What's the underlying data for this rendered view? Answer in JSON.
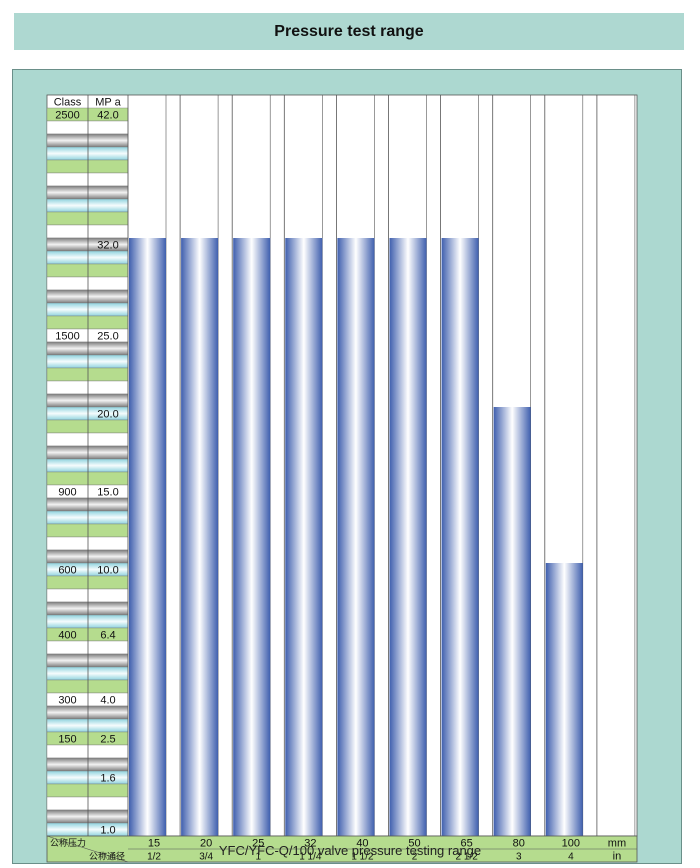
{
  "page": {
    "title": "Pressure test range",
    "caption": "YFC/YFC-Q/100 valve pressure testing range"
  },
  "colors": {
    "panel": "#acd8d0",
    "bar_edge": "#3f5fae",
    "bar_mid": "#ffffff",
    "row_green": "#b5dc8e",
    "row_cyan": "#b9e4ea",
    "row_gray": "#9c9c9c"
  },
  "chart_data": {
    "type": "bar",
    "header": {
      "class": "Class",
      "unit": "MP a"
    },
    "y_range_mpa": [
      1.0,
      42.0
    ],
    "rows": [
      {
        "mpa": "42.0",
        "class": "2500",
        "style": "green"
      },
      {
        "mpa": "",
        "class": "",
        "style": "white"
      },
      {
        "mpa": "",
        "class": "",
        "style": "gray"
      },
      {
        "mpa": "",
        "class": "",
        "style": "cyan"
      },
      {
        "mpa": "",
        "class": "",
        "style": "green"
      },
      {
        "mpa": "",
        "class": "",
        "style": "white"
      },
      {
        "mpa": "",
        "class": "",
        "style": "gray"
      },
      {
        "mpa": "",
        "class": "",
        "style": "cyan"
      },
      {
        "mpa": "",
        "class": "",
        "style": "green"
      },
      {
        "mpa": "",
        "class": "",
        "style": "white"
      },
      {
        "mpa": "32.0",
        "class": "",
        "style": "gray"
      },
      {
        "mpa": "",
        "class": "",
        "style": "cyan"
      },
      {
        "mpa": "",
        "class": "",
        "style": "green"
      },
      {
        "mpa": "",
        "class": "",
        "style": "white"
      },
      {
        "mpa": "",
        "class": "",
        "style": "gray"
      },
      {
        "mpa": "",
        "class": "",
        "style": "cyan"
      },
      {
        "mpa": "",
        "class": "",
        "style": "green"
      },
      {
        "mpa": "25.0",
        "class": "1500",
        "style": "white"
      },
      {
        "mpa": "",
        "class": "",
        "style": "gray"
      },
      {
        "mpa": "",
        "class": "",
        "style": "cyan"
      },
      {
        "mpa": "",
        "class": "",
        "style": "green"
      },
      {
        "mpa": "",
        "class": "",
        "style": "white"
      },
      {
        "mpa": "",
        "class": "",
        "style": "gray"
      },
      {
        "mpa": "20.0",
        "class": "",
        "style": "cyan"
      },
      {
        "mpa": "",
        "class": "",
        "style": "green"
      },
      {
        "mpa": "",
        "class": "",
        "style": "white"
      },
      {
        "mpa": "",
        "class": "",
        "style": "gray"
      },
      {
        "mpa": "",
        "class": "",
        "style": "cyan"
      },
      {
        "mpa": "",
        "class": "",
        "style": "green"
      },
      {
        "mpa": "15.0",
        "class": "900",
        "style": "white"
      },
      {
        "mpa": "",
        "class": "",
        "style": "gray"
      },
      {
        "mpa": "",
        "class": "",
        "style": "cyan"
      },
      {
        "mpa": "",
        "class": "",
        "style": "green"
      },
      {
        "mpa": "",
        "class": "",
        "style": "white"
      },
      {
        "mpa": "",
        "class": "",
        "style": "gray"
      },
      {
        "mpa": "10.0",
        "class": "600",
        "style": "cyan"
      },
      {
        "mpa": "",
        "class": "",
        "style": "green"
      },
      {
        "mpa": "",
        "class": "",
        "style": "white"
      },
      {
        "mpa": "",
        "class": "",
        "style": "gray"
      },
      {
        "mpa": "",
        "class": "",
        "style": "cyan"
      },
      {
        "mpa": "6.4",
        "class": "400",
        "style": "green"
      },
      {
        "mpa": "",
        "class": "",
        "style": "white"
      },
      {
        "mpa": "",
        "class": "",
        "style": "gray"
      },
      {
        "mpa": "",
        "class": "",
        "style": "cyan"
      },
      {
        "mpa": "",
        "class": "",
        "style": "green"
      },
      {
        "mpa": "4.0",
        "class": "300",
        "style": "white"
      },
      {
        "mpa": "",
        "class": "",
        "style": "gray"
      },
      {
        "mpa": "",
        "class": "",
        "style": "cyan"
      },
      {
        "mpa": "2.5",
        "class": "150",
        "style": "green"
      },
      {
        "mpa": "",
        "class": "",
        "style": "white"
      },
      {
        "mpa": "",
        "class": "",
        "style": "gray"
      },
      {
        "mpa": "1.6",
        "class": "",
        "style": "cyan"
      },
      {
        "mpa": "",
        "class": "",
        "style": "green"
      },
      {
        "mpa": "",
        "class": "",
        "style": "white"
      },
      {
        "mpa": "",
        "class": "",
        "style": "gray"
      },
      {
        "mpa": "1.0",
        "class": "",
        "style": "cyan"
      }
    ],
    "columns": [
      {
        "mm": "15",
        "in": "1/2",
        "max_row_label": "32.0"
      },
      {
        "mm": "20",
        "in": "3/4",
        "max_row_label": "32.0"
      },
      {
        "mm": "25",
        "in": "1",
        "max_row_label": "32.0"
      },
      {
        "mm": "32",
        "in": "1 1/4",
        "max_row_label": "32.0"
      },
      {
        "mm": "40",
        "in": "1 1/2",
        "max_row_label": "32.0"
      },
      {
        "mm": "50",
        "in": "2",
        "max_row_label": "32.0"
      },
      {
        "mm": "65",
        "in": "2 1/2",
        "max_row_label": "32.0"
      },
      {
        "mm": "80",
        "in": "3",
        "max_row_label": "20.0"
      },
      {
        "mm": "100",
        "in": "4",
        "max_row_label": "10.0"
      }
    ],
    "footer": {
      "pressure_label": "公称压力",
      "diameter_label": "公称通径",
      "unit_mm": "mm",
      "unit_in": "in"
    }
  }
}
